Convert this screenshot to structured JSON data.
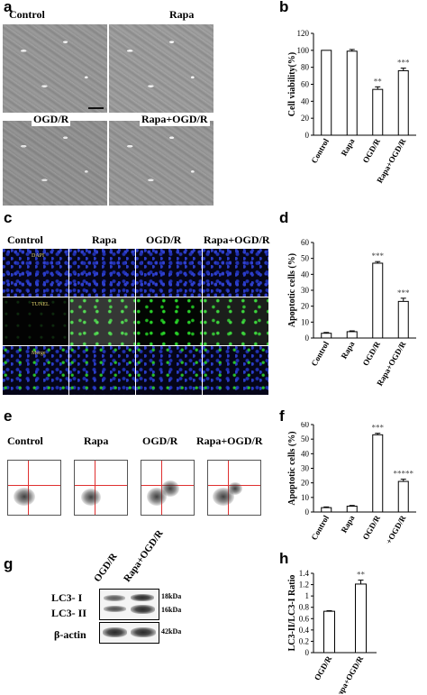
{
  "panels": {
    "a": {
      "label": "a",
      "titles": [
        "Control",
        "Rapa",
        "OGD/R",
        "Rapa+OGD/R"
      ]
    },
    "b": {
      "label": "b"
    },
    "c": {
      "label": "c",
      "columns": [
        "Control",
        "Rapa",
        "OGD/R",
        "Rapa+OGD/R"
      ],
      "rows": [
        "DAPI",
        "TUNEL",
        "Merge"
      ]
    },
    "d": {
      "label": "d"
    },
    "e": {
      "label": "e",
      "columns": [
        "Control",
        "Rapa",
        "OGD/R",
        "Rapa+OGD/R"
      ]
    },
    "f": {
      "label": "f"
    },
    "g": {
      "label": "g",
      "lanes": [
        "OGD/R",
        "Rapa+OGD/R"
      ],
      "bands": [
        "LC3- I",
        "LC3- II",
        "β-actin"
      ],
      "sizes": [
        "18kDa",
        "16kDa",
        "42kDa"
      ]
    },
    "h": {
      "label": "h"
    }
  },
  "colors": {
    "line": "#000000",
    "bar_fill": "#ffffff",
    "gate": "#e03030"
  },
  "chart_data": [
    {
      "id": "b",
      "type": "bar",
      "categories": [
        "Control",
        "Rapa",
        "OGD/R",
        "Rapa+OGD/R"
      ],
      "values": [
        100,
        99,
        54,
        76
      ],
      "errors": [
        0,
        2,
        3,
        3
      ],
      "annotations": [
        "",
        "",
        "**",
        "***"
      ],
      "ylabel": "Cell viability(%)",
      "ylim": [
        0,
        120
      ],
      "yticks": [
        0,
        20,
        40,
        60,
        80,
        100,
        120
      ]
    },
    {
      "id": "d",
      "type": "bar",
      "categories": [
        "Control",
        "Rapa",
        "OGD/R",
        "Rapa+OGD/R"
      ],
      "values": [
        3,
        4,
        47,
        23
      ],
      "errors": [
        0.5,
        0.5,
        1,
        2
      ],
      "annotations": [
        "",
        "",
        "***",
        "***"
      ],
      "ylabel": "Apoptotic cells (%)",
      "ylim": [
        0,
        60
      ],
      "yticks": [
        0,
        10,
        20,
        30,
        40,
        50,
        60
      ]
    },
    {
      "id": "f",
      "type": "bar",
      "categories": [
        "Control",
        "Rapa",
        "OGD/R",
        "Rapa+OGD/R"
      ],
      "values": [
        3,
        4,
        53,
        21
      ],
      "errors": [
        0.5,
        0.5,
        1,
        1.5
      ],
      "annotations": [
        "",
        "",
        "***",
        "*****"
      ],
      "ylabel": "Apoptotic cells (%)",
      "ylim": [
        0,
        60
      ],
      "yticks": [
        0,
        10,
        20,
        30,
        40,
        50,
        60
      ]
    },
    {
      "id": "h",
      "type": "bar",
      "categories": [
        "OGD/R",
        "Rapa+OGD/R"
      ],
      "values": [
        0.73,
        1.21
      ],
      "errors": [
        0.01,
        0.07
      ],
      "annotations": [
        "",
        "**"
      ],
      "ylabel": "LC3-II/LC3-I Ratio",
      "ylim": [
        0,
        1.4
      ],
      "yticks": [
        "0",
        "0.2",
        "0.4",
        "0.6",
        "0.8",
        "1",
        "1.2",
        "1.4"
      ]
    }
  ]
}
